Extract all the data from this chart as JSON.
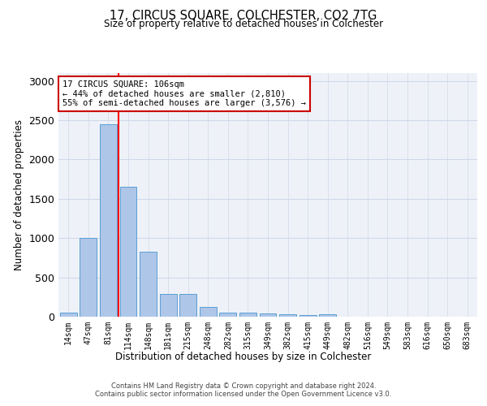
{
  "title": "17, CIRCUS SQUARE, COLCHESTER, CO2 7TG",
  "subtitle": "Size of property relative to detached houses in Colchester",
  "xlabel": "Distribution of detached houses by size in Colchester",
  "ylabel": "Number of detached properties",
  "categories": [
    "14sqm",
    "47sqm",
    "81sqm",
    "114sqm",
    "148sqm",
    "181sqm",
    "215sqm",
    "248sqm",
    "282sqm",
    "315sqm",
    "349sqm",
    "382sqm",
    "415sqm",
    "449sqm",
    "482sqm",
    "516sqm",
    "549sqm",
    "583sqm",
    "616sqm",
    "650sqm",
    "683sqm"
  ],
  "values": [
    50,
    1000,
    2450,
    1650,
    830,
    290,
    285,
    120,
    55,
    50,
    45,
    30,
    25,
    30,
    0,
    0,
    0,
    0,
    0,
    0,
    0
  ],
  "bar_color": "#aec6e8",
  "bar_edgecolor": "#5a9fd4",
  "bar_width": 0.85,
  "red_line_x": 2.5,
  "annotation_title": "17 CIRCUS SQUARE: 106sqm",
  "annotation_line1": "← 44% of detached houses are smaller (2,810)",
  "annotation_line2": "55% of semi-detached houses are larger (3,576) →",
  "annotation_box_color": "#ffffff",
  "annotation_box_edgecolor": "#cc0000",
  "ylim": [
    0,
    3100
  ],
  "grid_color": "#d0d8e8",
  "background_color": "#eef2f8",
  "footer_line1": "Contains HM Land Registry data © Crown copyright and database right 2024.",
  "footer_line2": "Contains public sector information licensed under the Open Government Licence v3.0."
}
